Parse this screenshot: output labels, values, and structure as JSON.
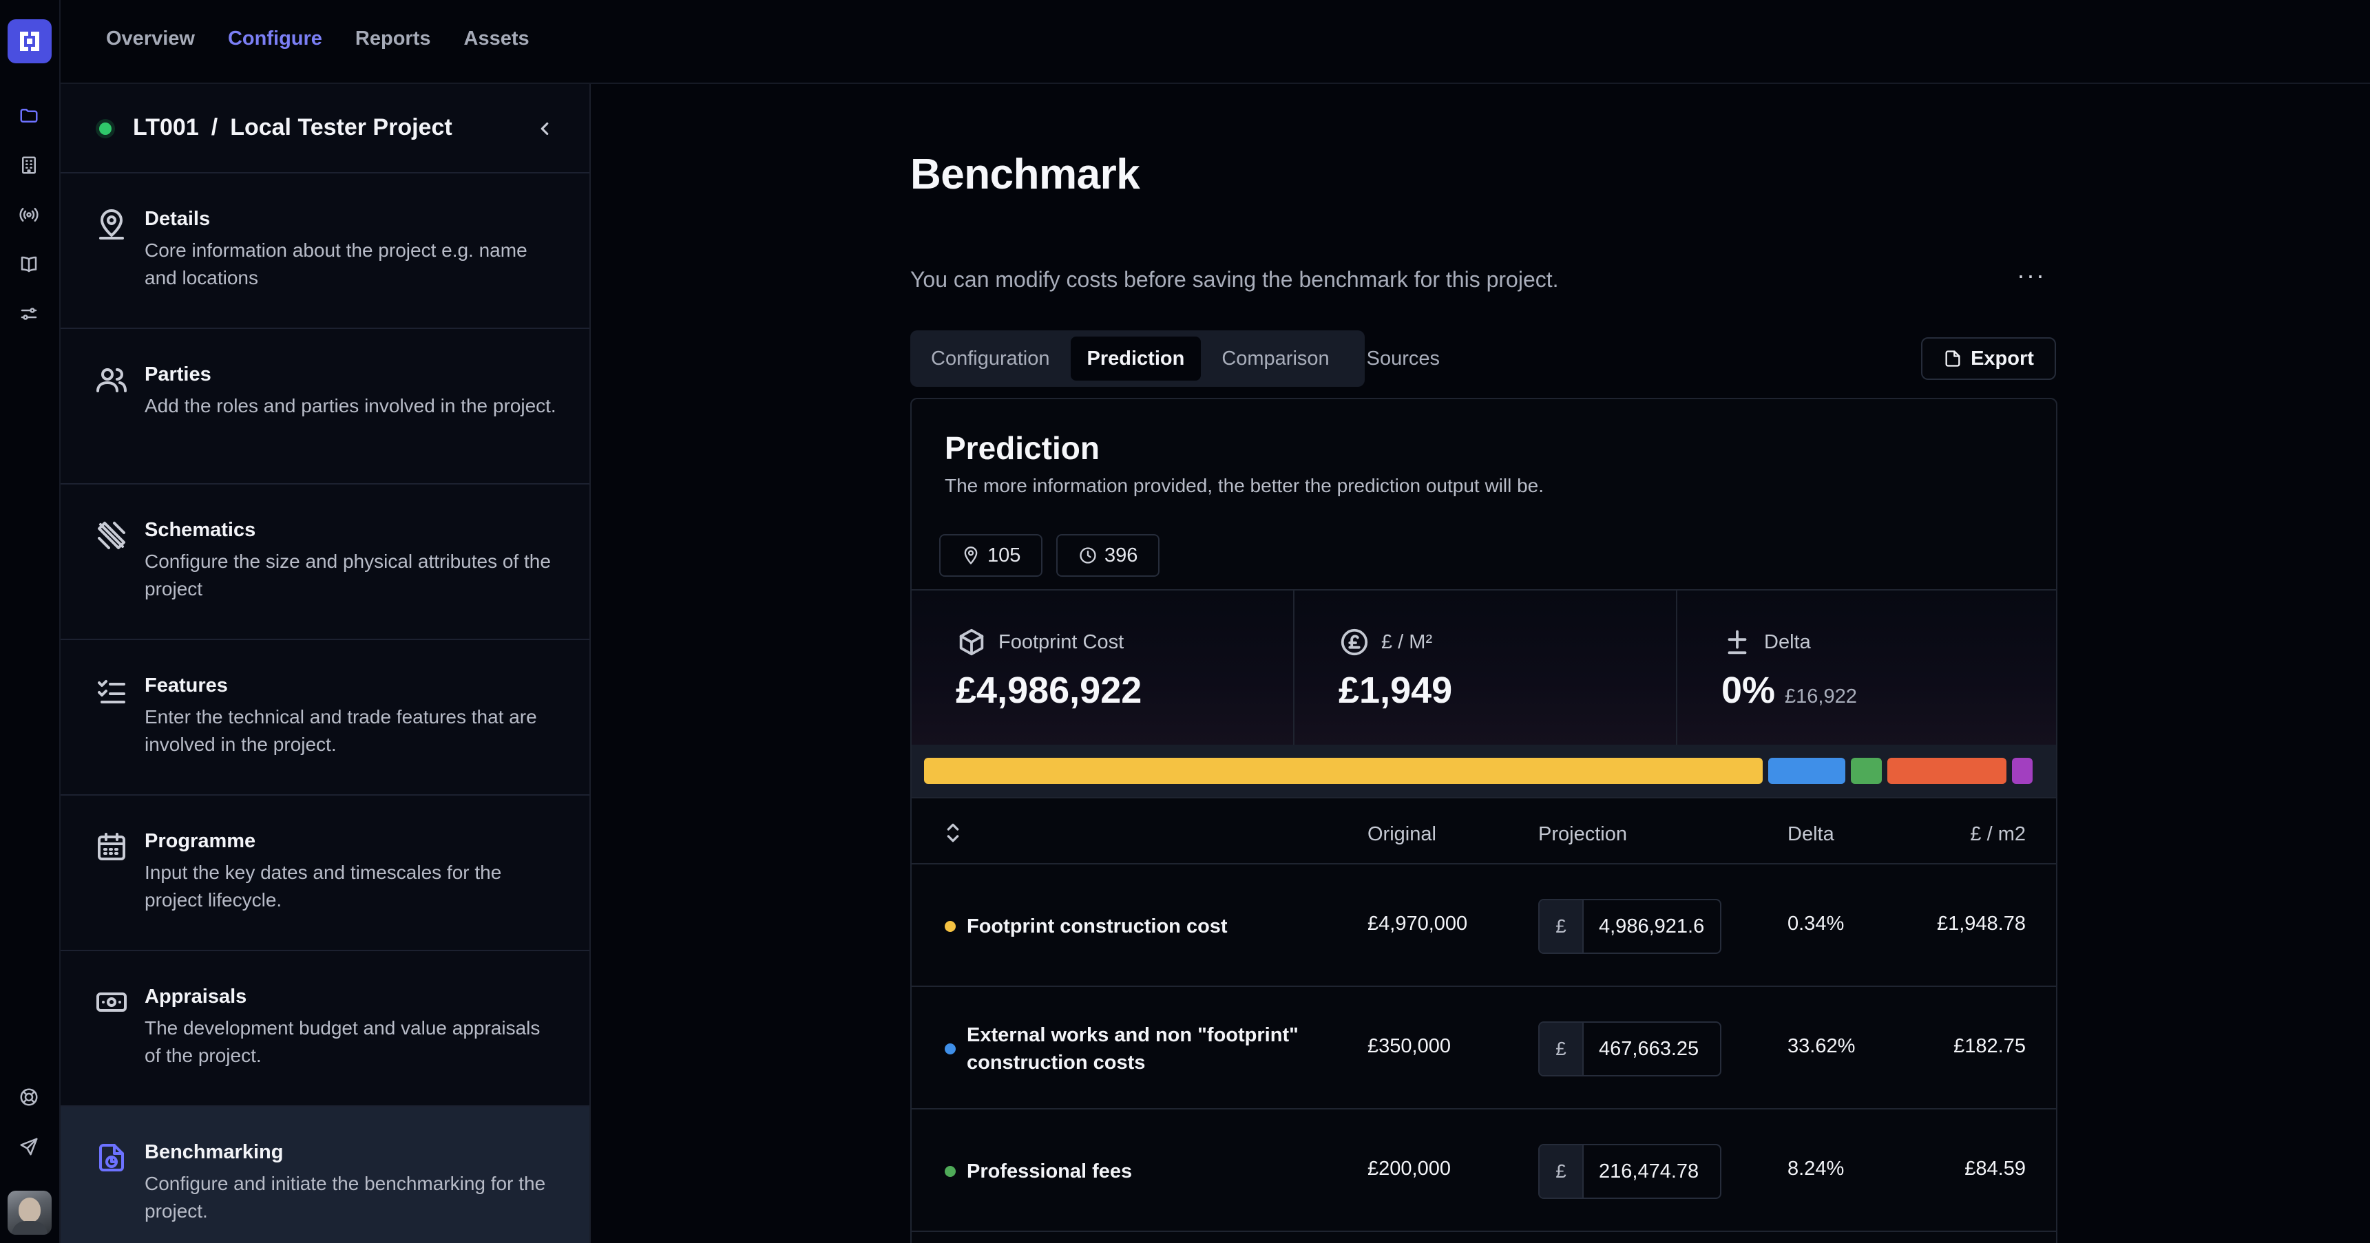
{
  "topnav": [
    "Overview",
    "Configure",
    "Reports",
    "Assets"
  ],
  "topnav_active": "Configure",
  "project": {
    "code": "LT001",
    "separator": "/",
    "name": "Local Tester Project"
  },
  "sidebar": {
    "items": [
      {
        "title": "Details",
        "desc": "Core information about the project e.g. name and locations",
        "icon": "map-pin-user-icon"
      },
      {
        "title": "Parties",
        "desc": "Add the roles and parties involved in the project.",
        "icon": "users-icon"
      },
      {
        "title": "Schematics",
        "desc": "Configure the size and physical attributes of the project",
        "icon": "ruler-pencil-icon"
      },
      {
        "title": "Features",
        "desc": "Enter the technical and trade features that are involved in the project.",
        "icon": "list-checks-icon"
      },
      {
        "title": "Programme",
        "desc": "Input the key dates and timescales for the project lifecycle.",
        "icon": "calendar-icon"
      },
      {
        "title": "Appraisals",
        "desc": "The development budget and value appraisals of the project.",
        "icon": "banknote-icon"
      },
      {
        "title": "Benchmarking",
        "desc": "Configure and initiate the benchmarking for the project.",
        "icon": "file-chart-icon"
      }
    ],
    "active": "Benchmarking"
  },
  "page": {
    "title": "Benchmark",
    "subtitle": "You can modify costs before saving the benchmark for this project.",
    "more_label": "···",
    "tabs": [
      "Configuration",
      "Prediction",
      "Comparison",
      "Sources"
    ],
    "active_tab": "Prediction",
    "export_label": "Export"
  },
  "prediction": {
    "title": "Prediction",
    "subtitle": "The more information provided, the better the prediction output will be.",
    "chips": [
      {
        "icon": "map-pin-icon",
        "value": "105"
      },
      {
        "icon": "clock-icon",
        "value": "396"
      }
    ],
    "stats": [
      {
        "label": "Footprint Cost",
        "value": "£4,986,922",
        "extra": "",
        "icon": "box-icon"
      },
      {
        "label": "£ / M²",
        "value": "£1,949",
        "extra": "",
        "icon": "pound-circle-icon"
      },
      {
        "label": "Delta",
        "value": "0%",
        "extra": "£16,922",
        "icon": "plus-minus-icon"
      }
    ],
    "bar_segments": [
      {
        "color": "#f5c242",
        "share": 0.762
      },
      {
        "color": "#3f8fe8",
        "share": 0.07
      },
      {
        "color": "#4faa58",
        "share": 0.028
      },
      {
        "color": "#e8603a",
        "share": 0.108
      },
      {
        "color": "#a23fc0",
        "share": 0.019
      }
    ],
    "columns": {
      "original": "Original",
      "projection": "Projection",
      "delta": "Delta",
      "per_m2": "£ / m2"
    },
    "currency_symbol": "£",
    "rows": [
      {
        "name": "Footprint construction cost",
        "color": "#f5c242",
        "original": "£4,970,000",
        "projection": "4,986,921.6",
        "delta": "0.34%",
        "per_m2": "£1,948.78"
      },
      {
        "name": "External works and non \"footprint\" construction costs",
        "color": "#3f8fe8",
        "original": "£350,000",
        "projection": "467,663.25",
        "delta": "33.62%",
        "per_m2": "£182.75"
      },
      {
        "name": "Professional fees",
        "color": "#4faa58",
        "original": "£200,000",
        "projection": "216,474.78",
        "delta": "8.24%",
        "per_m2": "£84.59"
      }
    ]
  }
}
